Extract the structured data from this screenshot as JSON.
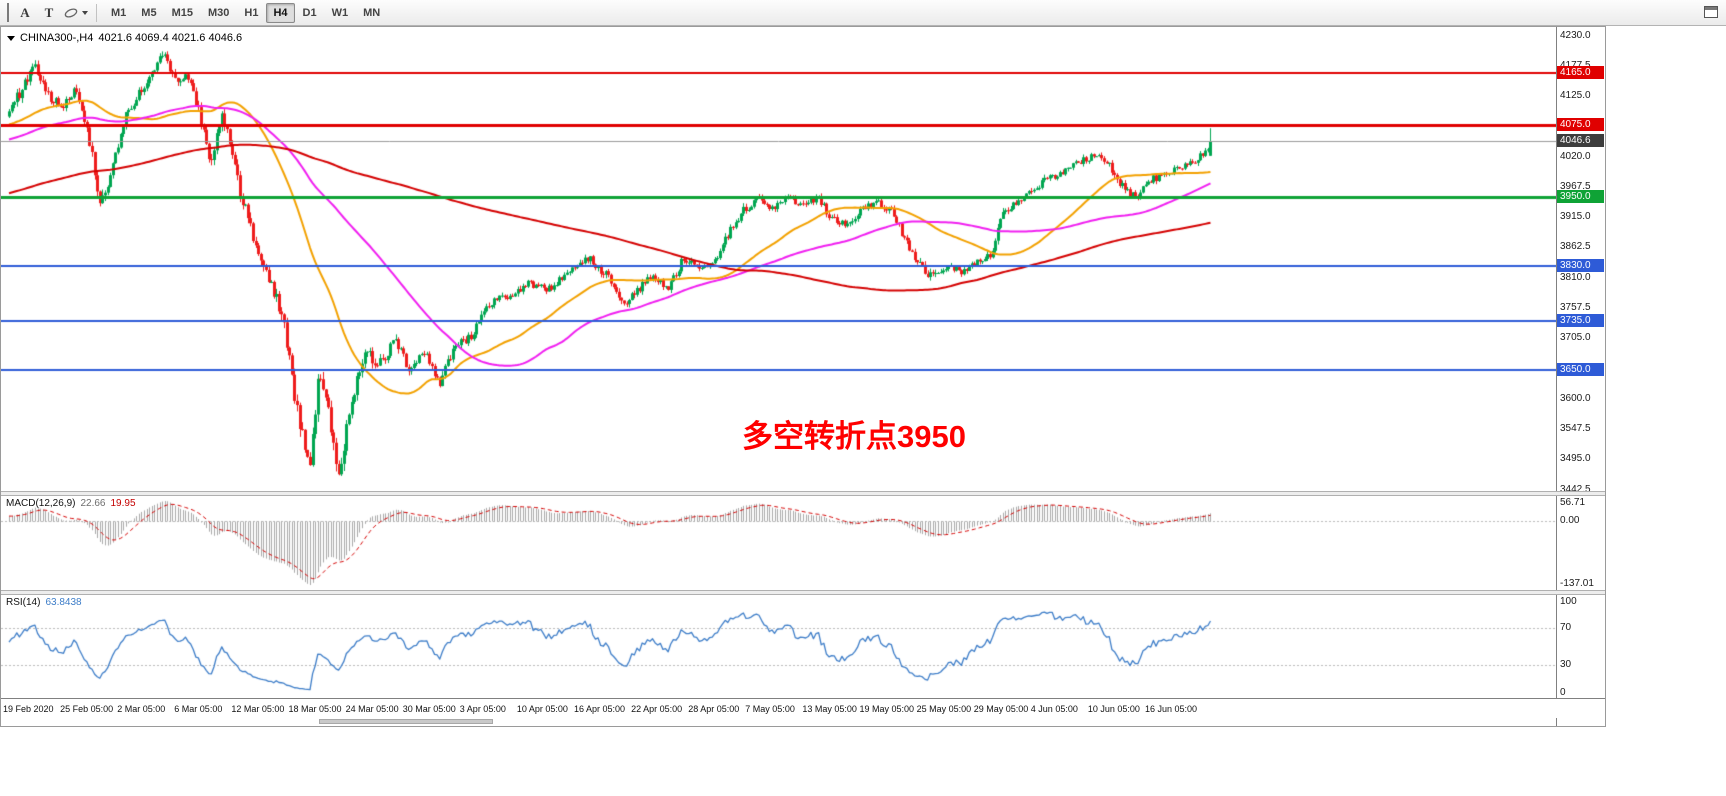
{
  "toolbar": {
    "tool_a_label": "A",
    "tool_t_label": "T",
    "timeframes": [
      "M1",
      "M5",
      "M15",
      "M30",
      "H1",
      "H4",
      "D1",
      "W1",
      "MN"
    ],
    "active_timeframe": "H4"
  },
  "chart": {
    "symbol": "CHINA300-,H4",
    "ohlc_text": "4021.6 4069.4 4021.6 4046.6",
    "annotation": {
      "text": "多空转折点3950",
      "color": "#ff0000"
    },
    "current_price": {
      "label": "4046.6",
      "price": 4046.6,
      "line_color": "#9a9a9a",
      "badge_color": "#3d3d3d"
    },
    "levels": [
      {
        "label": "4165.0",
        "price": 4165.0,
        "color": "#e00000",
        "width": 2
      },
      {
        "label": "4075.0",
        "price": 4075.0,
        "color": "#e00000",
        "width": 3
      },
      {
        "label": "3950.0",
        "price": 3950.0,
        "color": "#0fa336",
        "width": 3
      },
      {
        "label": "3830.0",
        "price": 3830.0,
        "color": "#2e5bd7",
        "width": 2
      },
      {
        "label": "3735.0",
        "price": 3735.0,
        "color": "#2e5bd7",
        "width": 2
      },
      {
        "label": "3650.0",
        "price": 3650.0,
        "color": "#2e5bd7",
        "width": 2
      }
    ],
    "price_ticks": [
      4230.0,
      4177.5,
      4125.0,
      4072.5,
      4020.0,
      3967.5,
      3915.0,
      3862.5,
      3810.0,
      3757.5,
      3705.0,
      3652.5,
      3600.0,
      3547.5,
      3495.0,
      3442.5
    ]
  },
  "macd_panel": {
    "label": "MACD(12,26,9)",
    "value_main": "22.66",
    "value_signal": "19.95",
    "axis_max_label": "56.71",
    "axis_zero_label": "0.00",
    "axis_min_label": "-137.01"
  },
  "rsi_panel": {
    "label": "RSI(14)",
    "value": "63.8438",
    "axis_labels": [
      "100",
      "70",
      "30",
      "0"
    ],
    "levels": [
      70,
      30
    ]
  },
  "time_axis": {
    "labels": [
      "19 Feb 2020",
      "25 Feb 05:00",
      "2 Mar 05:00",
      "6 Mar 05:00",
      "12 Mar 05:00",
      "18 Mar 05:00",
      "24 Mar 05:00",
      "30 Mar 05:00",
      "3 Apr 05:00",
      "10 Apr 05:00",
      "16 Apr 05:00",
      "22 Apr 05:00",
      "28 Apr 05:00",
      "7 May 05:00",
      "13 May 05:00",
      "19 May 05:00",
      "25 May 05:00",
      "29 May 05:00",
      "4 Jun 05:00",
      "10 Jun 05:00",
      "16 Jun 05:00"
    ]
  },
  "chart_data": {
    "type": "candlestick",
    "symbol": "CHINA300",
    "timeframe": "H4",
    "visible_bars": 464,
    "price_axis_range": [
      3440,
      4245
    ],
    "last_candle": {
      "open": 4021.6,
      "high": 4069.4,
      "low": 4021.6,
      "close": 4046.6
    },
    "price_path": [
      [
        0.0,
        4100,
        12
      ],
      [
        0.01,
        4135,
        12
      ],
      [
        0.021,
        4185,
        14
      ],
      [
        0.033,
        4125,
        12
      ],
      [
        0.045,
        4110,
        10
      ],
      [
        0.056,
        4140,
        10
      ],
      [
        0.066,
        4060,
        14
      ],
      [
        0.076,
        3935,
        16
      ],
      [
        0.086,
        4000,
        14
      ],
      [
        0.097,
        4090,
        12
      ],
      [
        0.108,
        4130,
        10
      ],
      [
        0.118,
        4160,
        10
      ],
      [
        0.128,
        4195,
        14
      ],
      [
        0.138,
        4150,
        12
      ],
      [
        0.149,
        4160,
        10
      ],
      [
        0.159,
        4090,
        12
      ],
      [
        0.167,
        4010,
        14
      ],
      [
        0.177,
        4090,
        12
      ],
      [
        0.186,
        4030,
        12
      ],
      [
        0.193,
        3950,
        14
      ],
      [
        0.202,
        3890,
        16
      ],
      [
        0.21,
        3830,
        16
      ],
      [
        0.219,
        3790,
        16
      ],
      [
        0.228,
        3740,
        18
      ],
      [
        0.242,
        3550,
        22
      ],
      [
        0.25,
        3480,
        22
      ],
      [
        0.258,
        3640,
        20
      ],
      [
        0.267,
        3560,
        20
      ],
      [
        0.275,
        3468,
        22
      ],
      [
        0.283,
        3580,
        18
      ],
      [
        0.296,
        3680,
        14
      ],
      [
        0.308,
        3660,
        12
      ],
      [
        0.321,
        3700,
        12
      ],
      [
        0.333,
        3650,
        12
      ],
      [
        0.345,
        3685,
        10
      ],
      [
        0.358,
        3625,
        12
      ],
      [
        0.37,
        3690,
        10
      ],
      [
        0.383,
        3705,
        10
      ],
      [
        0.399,
        3765,
        10
      ],
      [
        0.416,
        3780,
        9
      ],
      [
        0.433,
        3800,
        8
      ],
      [
        0.449,
        3790,
        8
      ],
      [
        0.466,
        3820,
        8
      ],
      [
        0.482,
        3845,
        8
      ],
      [
        0.499,
        3810,
        10
      ],
      [
        0.511,
        3765,
        10
      ],
      [
        0.524,
        3790,
        9
      ],
      [
        0.536,
        3815,
        8
      ],
      [
        0.548,
        3785,
        10
      ],
      [
        0.561,
        3845,
        9
      ],
      [
        0.573,
        3825,
        8
      ],
      [
        0.586,
        3835,
        8
      ],
      [
        0.598,
        3885,
        10
      ],
      [
        0.611,
        3925,
        10
      ],
      [
        0.623,
        3950,
        9
      ],
      [
        0.635,
        3930,
        8
      ],
      [
        0.648,
        3950,
        8
      ],
      [
        0.66,
        3935,
        8
      ],
      [
        0.673,
        3950,
        8
      ],
      [
        0.685,
        3910,
        9
      ],
      [
        0.698,
        3900,
        8
      ],
      [
        0.71,
        3930,
        8
      ],
      [
        0.722,
        3940,
        8
      ],
      [
        0.735,
        3925,
        8
      ],
      [
        0.747,
        3870,
        10
      ],
      [
        0.756,
        3840,
        10
      ],
      [
        0.768,
        3810,
        10
      ],
      [
        0.78,
        3830,
        8
      ],
      [
        0.793,
        3820,
        8
      ],
      [
        0.805,
        3840,
        8
      ],
      [
        0.818,
        3850,
        8
      ],
      [
        0.826,
        3920,
        11
      ],
      [
        0.838,
        3940,
        8
      ],
      [
        0.851,
        3960,
        8
      ],
      [
        0.863,
        3980,
        8
      ],
      [
        0.876,
        3990,
        8
      ],
      [
        0.888,
        4010,
        8
      ],
      [
        0.901,
        4020,
        8
      ],
      [
        0.913,
        4015,
        8
      ],
      [
        0.925,
        3970,
        10
      ],
      [
        0.938,
        3950,
        8
      ],
      [
        0.95,
        3980,
        8
      ],
      [
        0.963,
        3990,
        8
      ],
      [
        0.975,
        4000,
        8
      ],
      [
        0.988,
        4012,
        8
      ],
      [
        1.0,
        4040,
        8
      ]
    ],
    "moving_averages": [
      {
        "period": 45,
        "color": "#f2a100"
      },
      {
        "period": 90,
        "color": "#f01ff0"
      },
      {
        "period": 250,
        "color": "#d40000"
      }
    ],
    "colors": {
      "up": "#00a651",
      "down": "#ee1c1c",
      "macd_hist": "#a8a8a8",
      "macd_signal": "#d40000",
      "rsi_line": "#3d7dc8"
    },
    "macd_params": {
      "fast": 12,
      "slow": 26,
      "signal": 9
    },
    "rsi_period": 14
  }
}
